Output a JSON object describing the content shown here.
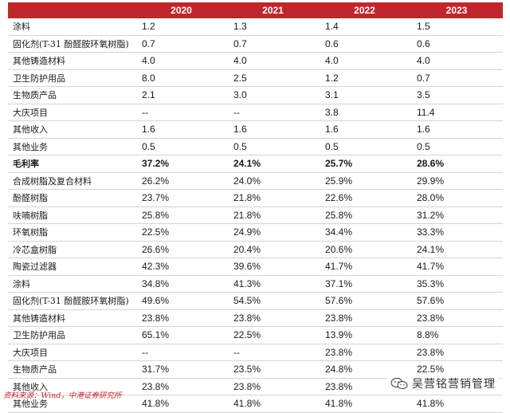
{
  "header": {
    "label": "",
    "years": [
      "2020",
      "2021",
      "2022",
      "2023"
    ]
  },
  "rows": [
    {
      "label": "涂料",
      "values": [
        "1.2",
        "1.3",
        "1.4",
        "1.5"
      ],
      "bold": false
    },
    {
      "label": "固化剂(T-31 酚醛胺环氧树脂)",
      "values": [
        "0.7",
        "0.7",
        "0.6",
        "0.6"
      ],
      "bold": false
    },
    {
      "label": "其他铸造材料",
      "values": [
        "4.0",
        "4.0",
        "4.0",
        "4.0"
      ],
      "bold": false
    },
    {
      "label": "卫生防护用品",
      "values": [
        "8.0",
        "2.5",
        "1.2",
        "0.7"
      ],
      "bold": false
    },
    {
      "label": "生物质产品",
      "values": [
        "2.1",
        "3.0",
        "3.1",
        "3.5"
      ],
      "bold": false
    },
    {
      "label": "大庆项目",
      "values": [
        "--",
        "--",
        "3.8",
        "11.4"
      ],
      "bold": false
    },
    {
      "label": "其他收入",
      "values": [
        "1.6",
        "1.6",
        "1.6",
        "1.6"
      ],
      "bold": false
    },
    {
      "label": "其他业务",
      "values": [
        "0.5",
        "0.5",
        "0.5",
        "0.5"
      ],
      "bold": false
    },
    {
      "label": "毛利率",
      "values": [
        "37.2%",
        "24.1%",
        "25.7%",
        "28.6%"
      ],
      "bold": true
    },
    {
      "label": "合成树脂及复合材料",
      "values": [
        "26.2%",
        "24.0%",
        "25.9%",
        "29.9%"
      ],
      "bold": false
    },
    {
      "label": "酚醛树脂",
      "values": [
        "23.7%",
        "21.8%",
        "22.6%",
        "28.0%"
      ],
      "bold": false
    },
    {
      "label": "呋喃树脂",
      "values": [
        "25.8%",
        "21.8%",
        "25.8%",
        "31.2%"
      ],
      "bold": false
    },
    {
      "label": "环氧树脂",
      "values": [
        "22.5%",
        "24.9%",
        "34.4%",
        "33.3%"
      ],
      "bold": false
    },
    {
      "label": "冷芯盒树脂",
      "values": [
        "26.6%",
        "20.4%",
        "20.6%",
        "24.1%"
      ],
      "bold": false
    },
    {
      "label": "陶瓷过滤器",
      "values": [
        "42.3%",
        "39.6%",
        "41.7%",
        "41.7%"
      ],
      "bold": false
    },
    {
      "label": "涂料",
      "values": [
        "34.8%",
        "41.3%",
        "37.1%",
        "35.3%"
      ],
      "bold": false
    },
    {
      "label": "固化剂(T-31 酚醛胺环氧树脂)",
      "values": [
        "49.6%",
        "54.5%",
        "57.6%",
        "57.6%"
      ],
      "bold": false
    },
    {
      "label": "其他铸造材料",
      "values": [
        "23.8%",
        "23.8%",
        "23.8%",
        "23.8%"
      ],
      "bold": false
    },
    {
      "label": "卫生防护用品",
      "values": [
        "65.1%",
        "22.5%",
        "13.9%",
        "8.8%"
      ],
      "bold": false
    },
    {
      "label": "大庆项目",
      "values": [
        "--",
        "--",
        "23.8%",
        "23.8%"
      ],
      "bold": false
    },
    {
      "label": "生物质产品",
      "values": [
        "31.7%",
        "23.5%",
        "24.8%",
        "22.5%"
      ],
      "bold": false
    },
    {
      "label": "其他收入",
      "values": [
        "23.8%",
        "23.8%",
        "23.8%",
        "23.8%"
      ],
      "bold": false
    },
    {
      "label": "其他业务",
      "values": [
        "41.8%",
        "41.8%",
        "41.8%",
        "41.8%"
      ],
      "bold": false
    }
  ],
  "source": "资料来源：Wind，中港证券研究所",
  "watermark": {
    "icon": "wechat-icon",
    "text": "吴营铭营销管理",
    "color": "#555555"
  },
  "accent_color": "#c0272d"
}
